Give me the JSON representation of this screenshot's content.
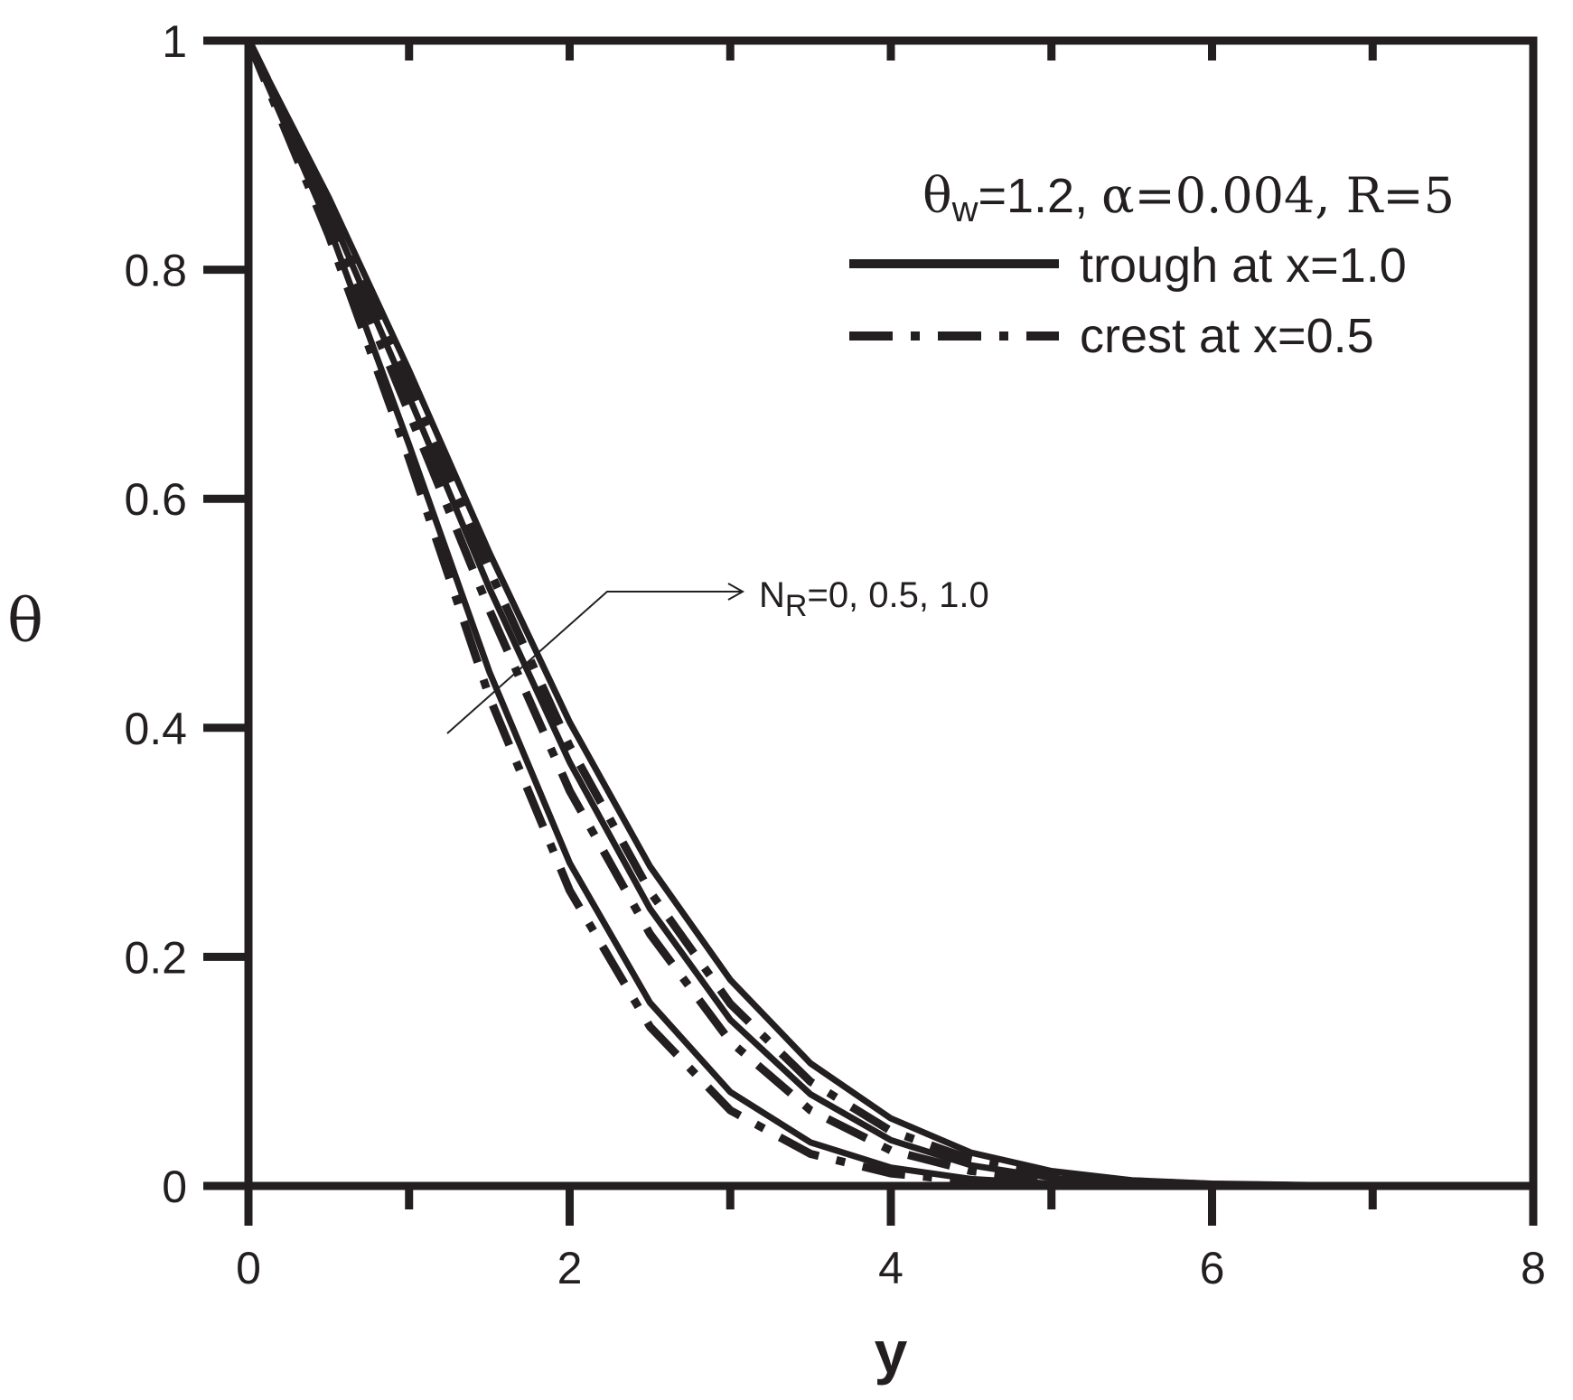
{
  "chart_data": {
    "type": "line",
    "xlabel": "y",
    "ylabel": "θ",
    "xlim": [
      0,
      8
    ],
    "ylim": [
      0,
      1
    ],
    "xticks": [
      "0",
      "2",
      "4",
      "6",
      "8"
    ],
    "yticks": [
      "0",
      "0.2",
      "0.4",
      "0.6",
      "0.8",
      "1"
    ],
    "grid": false,
    "legend_position": "top-right",
    "parameters_text": "θw=1.2, α=0.004, R=5",
    "annotation": "NR=0, 0.5, 1.0",
    "legend": [
      {
        "label": "trough at x=1.0",
        "style": "solid"
      },
      {
        "label": "crest at x=0.5",
        "style": "dash-dot"
      }
    ],
    "x": [
      0,
      0.5,
      1,
      1.5,
      2,
      2.5,
      3,
      3.5,
      4,
      4.5,
      5,
      5.5,
      6,
      6.5,
      7,
      8
    ],
    "series": [
      {
        "style": "solid",
        "values": [
          1,
          0.863,
          0.712,
          0.553,
          0.405,
          0.279,
          0.18,
          0.107,
          0.059,
          0.029,
          0.013,
          0.005,
          0.002,
          0.001,
          0,
          0
        ]
      },
      {
        "style": "solid",
        "values": [
          1,
          0.852,
          0.689,
          0.522,
          0.37,
          0.242,
          0.145,
          0.08,
          0.04,
          0.018,
          0.007,
          0.003,
          0.001,
          0,
          0,
          0
        ]
      },
      {
        "style": "solid",
        "values": [
          1,
          0.838,
          0.647,
          0.449,
          0.282,
          0.16,
          0.082,
          0.038,
          0.016,
          0.006,
          0.002,
          0.001,
          0,
          0,
          0,
          0
        ]
      },
      {
        "style": "dash-dot",
        "values": [
          1,
          0.857,
          0.702,
          0.538,
          0.384,
          0.257,
          0.159,
          0.091,
          0.048,
          0.023,
          0.01,
          0.004,
          0.001,
          0,
          0,
          0
        ]
      },
      {
        "style": "dash-dot",
        "values": [
          1,
          0.845,
          0.675,
          0.503,
          0.345,
          0.22,
          0.126,
          0.066,
          0.031,
          0.013,
          0.005,
          0.002,
          0.001,
          0,
          0,
          0
        ]
      },
      {
        "style": "dash-dot",
        "values": [
          1,
          0.83,
          0.635,
          0.427,
          0.258,
          0.139,
          0.066,
          0.028,
          0.011,
          0.004,
          0.001,
          0,
          0,
          0,
          0,
          0
        ]
      }
    ]
  }
}
